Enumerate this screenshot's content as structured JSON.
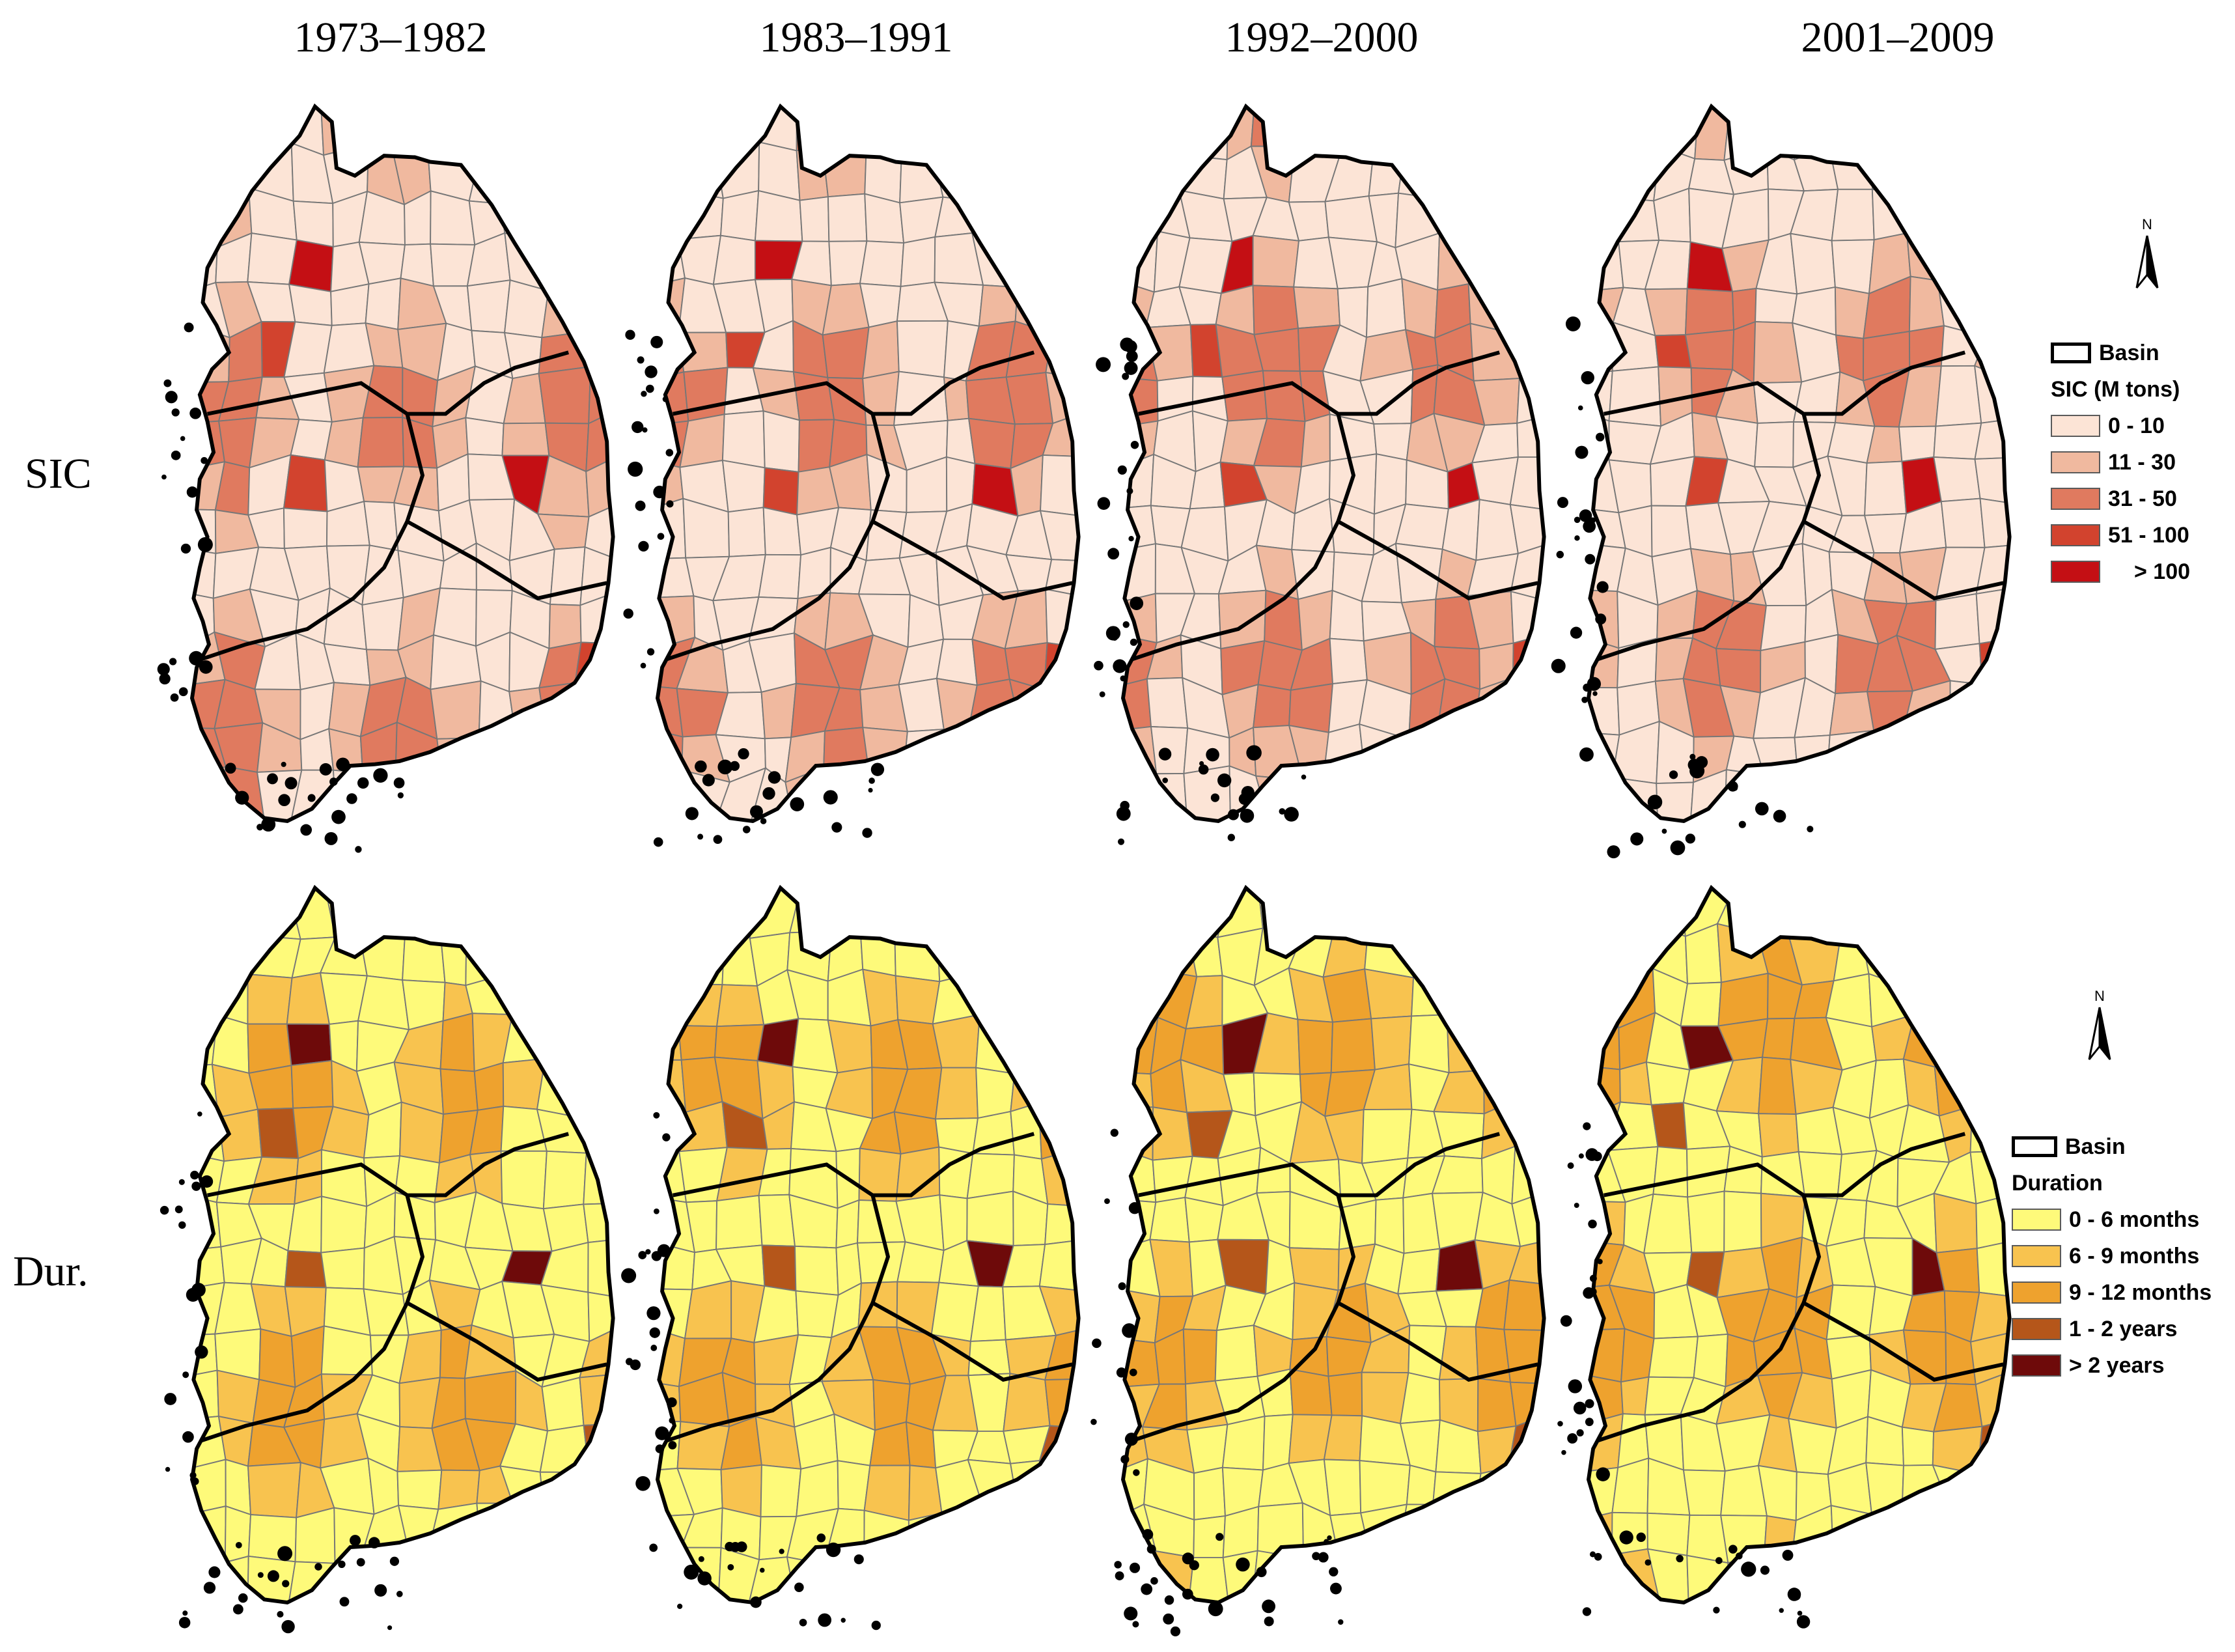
{
  "periods": [
    "1973–1982",
    "1983–1991",
    "1992–2000",
    "2001–2009"
  ],
  "rows": [
    {
      "label": "SIC"
    },
    {
      "label": "Dur."
    }
  ],
  "north_arrow": {
    "label": "N"
  },
  "legend_sic": {
    "basin_label": "Basin",
    "title": "SIC (M tons)",
    "classes": [
      {
        "label": "0 - 10",
        "color": "#fce4d6"
      },
      {
        "label": "11 - 30",
        "color": "#f0b99f"
      },
      {
        "label": "31 - 50",
        "color": "#e07a5f"
      },
      {
        "label": "51 - 100",
        "color": "#d2432e"
      },
      {
        "label": "> 100",
        "color": "#c40f14"
      }
    ]
  },
  "legend_dur": {
    "basin_label": "Basin",
    "title": "Duration",
    "classes": [
      {
        "label": "0 - 6 months",
        "color": "#fefa7a"
      },
      {
        "label": "6 - 9 months",
        "color": "#f8c34f"
      },
      {
        "label": "9 - 12 months",
        "color": "#eea22e"
      },
      {
        "label": "1 - 2 years",
        "color": "#b5561a"
      },
      {
        "label": "> 2 years",
        "color": "#6e0a0a"
      }
    ]
  }
}
